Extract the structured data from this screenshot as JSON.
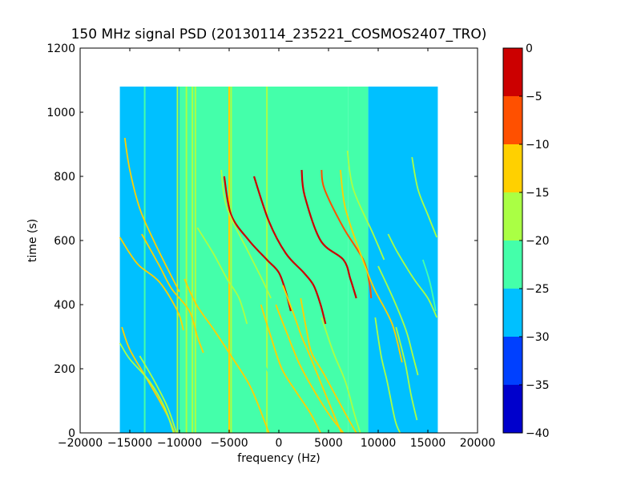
{
  "chart_data": {
    "type": "heatmap",
    "title": "150 MHz signal PSD (20130114_235221_COSMOS2407_TRO)",
    "xlabel": "frequency (Hz)",
    "ylabel": "time (s)",
    "xlim": [
      -20000,
      20000
    ],
    "ylim": [
      0,
      1200
    ],
    "xticks": [
      -20000,
      -15000,
      -10000,
      -5000,
      0,
      5000,
      10000,
      15000,
      20000
    ],
    "xtick_labels": [
      "−20000",
      "−15000",
      "−10000",
      "−5000",
      "0",
      "5000",
      "10000",
      "15000",
      "20000"
    ],
    "yticks": [
      0,
      200,
      400,
      600,
      800,
      1000,
      1200
    ],
    "ytick_labels": [
      "0",
      "200",
      "400",
      "600",
      "800",
      "1000",
      "1200"
    ],
    "data_extent": {
      "x": [
        -16000,
        16000
      ],
      "y": [
        0,
        1080
      ]
    },
    "colorbar": {
      "range": [
        -40,
        0
      ],
      "ticks": [
        0,
        -5,
        -10,
        -15,
        -20,
        -25,
        -30,
        -35,
        -40
      ],
      "tick_labels": [
        "0",
        "−5",
        "−10",
        "−15",
        "−20",
        "−25",
        "−30",
        "−35",
        "−40"
      ],
      "bins": [
        {
          "range": [
            -40,
            -35
          ],
          "color": "#0000cc"
        },
        {
          "range": [
            -35,
            -30
          ],
          "color": "#0040ff"
        },
        {
          "range": [
            -30,
            -25
          ],
          "color": "#00c0ff"
        },
        {
          "range": [
            -25,
            -20
          ],
          "color": "#44ffaa"
        },
        {
          "range": [
            -20,
            -15
          ],
          "color": "#aaff44"
        },
        {
          "range": [
            -15,
            -10
          ],
          "color": "#ffd000"
        },
        {
          "range": [
            -10,
            -5
          ],
          "color": "#ff5000"
        },
        {
          "range": [
            -5,
            0
          ],
          "color": "#cc0000"
        }
      ]
    },
    "regions": [
      {
        "x": [
          -16000,
          -10000
        ],
        "y": [
          0,
          1080
        ],
        "level": -27.5
      },
      {
        "x": [
          -10000,
          7000
        ],
        "y": [
          0,
          1080
        ],
        "level": -22.5
      },
      {
        "x": [
          7000,
          9000
        ],
        "y": [
          0,
          1080
        ],
        "level": -24
      },
      {
        "x": [
          9000,
          16000
        ],
        "y": [
          0,
          1080
        ],
        "level": -27.5
      }
    ],
    "vertical_lines": [
      {
        "x": -13500,
        "level": -22.5
      },
      {
        "x": -10200,
        "level": -17.5
      },
      {
        "x": -9300,
        "level": -17.5
      },
      {
        "x": -8700,
        "level": -17.5
      },
      {
        "x": -8400,
        "level": -17.5
      },
      {
        "x": -5000,
        "level": -12.5
      },
      {
        "x": -4800,
        "level": -17.5
      },
      {
        "x": -1200,
        "level": -17.5
      },
      {
        "x": 8800,
        "level": -22.5
      }
    ],
    "tracks": [
      {
        "level": -2.5,
        "points": [
          [
            -5500,
            800
          ],
          [
            -4800,
            680
          ],
          [
            -3000,
            600
          ],
          [
            -1200,
            540
          ],
          [
            0,
            500
          ],
          [
            700,
            440
          ],
          [
            1200,
            380
          ]
        ]
      },
      {
        "level": -2.5,
        "points": [
          [
            -2500,
            800
          ],
          [
            -1000,
            660
          ],
          [
            700,
            560
          ],
          [
            2500,
            500
          ],
          [
            3500,
            460
          ],
          [
            4200,
            400
          ],
          [
            4700,
            340
          ]
        ]
      },
      {
        "level": -2.5,
        "points": [
          [
            2300,
            820
          ],
          [
            2600,
            740
          ],
          [
            4200,
            600
          ],
          [
            6500,
            540
          ],
          [
            7200,
            480
          ],
          [
            7800,
            420
          ]
        ]
      },
      {
        "level": -7.5,
        "points": [
          [
            4300,
            820
          ],
          [
            4600,
            760
          ],
          [
            6500,
            640
          ],
          [
            8500,
            540
          ],
          [
            9100,
            470
          ],
          [
            9300,
            420
          ]
        ]
      },
      {
        "level": -12.5,
        "points": [
          [
            -1800,
            400
          ],
          [
            -800,
            300
          ],
          [
            300,
            200
          ],
          [
            1700,
            130
          ],
          [
            3200,
            60
          ],
          [
            4200,
            0
          ]
        ]
      },
      {
        "level": -12.5,
        "points": [
          [
            -300,
            400
          ],
          [
            700,
            320
          ],
          [
            2000,
            220
          ],
          [
            3200,
            150
          ],
          [
            5000,
            60
          ],
          [
            6500,
            0
          ]
        ]
      },
      {
        "level": -12.5,
        "points": [
          [
            400,
            460
          ],
          [
            1500,
            370
          ],
          [
            2300,
            300
          ],
          [
            3000,
            250
          ],
          [
            4700,
            120
          ],
          [
            6300,
            0
          ]
        ]
      },
      {
        "level": -12.5,
        "points": [
          [
            2200,
            420
          ],
          [
            2800,
            320
          ],
          [
            3300,
            250
          ],
          [
            4600,
            180
          ],
          [
            6700,
            60
          ],
          [
            7800,
            0
          ]
        ]
      },
      {
        "level": -12.5,
        "points": [
          [
            6200,
            820
          ],
          [
            6700,
            700
          ],
          [
            8200,
            560
          ],
          [
            9600,
            450
          ],
          [
            11400,
            340
          ],
          [
            12400,
            220
          ]
        ]
      },
      {
        "level": -12.5,
        "points": [
          [
            -13800,
            620
          ],
          [
            -12000,
            520
          ],
          [
            -10800,
            450
          ],
          [
            -9000,
            380
          ],
          [
            -8200,
            300
          ],
          [
            -7600,
            250
          ]
        ]
      },
      {
        "level": -12.5,
        "points": [
          [
            -16000,
            610
          ],
          [
            -15000,
            560
          ],
          [
            -14000,
            520
          ],
          [
            -12000,
            470
          ],
          [
            -10200,
            380
          ],
          [
            -9600,
            320
          ]
        ]
      },
      {
        "level": -12.5,
        "points": [
          [
            -15500,
            920
          ],
          [
            -15000,
            820
          ],
          [
            -14000,
            700
          ],
          [
            -12600,
            600
          ],
          [
            -11000,
            500
          ],
          [
            -10000,
            440
          ]
        ]
      },
      {
        "level": -12.5,
        "points": [
          [
            -15800,
            330
          ],
          [
            -15000,
            260
          ],
          [
            -13500,
            180
          ],
          [
            -12000,
            100
          ],
          [
            -11000,
            40
          ],
          [
            -10500,
            0
          ]
        ]
      },
      {
        "level": -12.5,
        "points": [
          [
            -9500,
            480
          ],
          [
            -8300,
            400
          ],
          [
            -6500,
            320
          ],
          [
            -4800,
            240
          ],
          [
            -2800,
            140
          ],
          [
            -1000,
            0
          ]
        ]
      },
      {
        "level": -17.5,
        "points": [
          [
            -5800,
            820
          ],
          [
            -5200,
            700
          ],
          [
            -3000,
            560
          ],
          [
            -1700,
            480
          ],
          [
            -800,
            420
          ]
        ]
      },
      {
        "level": -17.5,
        "points": [
          [
            -16000,
            280
          ],
          [
            -15000,
            230
          ],
          [
            -13000,
            160
          ],
          [
            -11500,
            80
          ],
          [
            -10600,
            0
          ]
        ]
      },
      {
        "level": -17.5,
        "points": [
          [
            -8200,
            640
          ],
          [
            -6600,
            560
          ],
          [
            -5200,
            480
          ],
          [
            -4000,
            420
          ],
          [
            -3200,
            340
          ]
        ]
      },
      {
        "level": -17.5,
        "points": [
          [
            -14000,
            240
          ],
          [
            -12500,
            160
          ],
          [
            -11200,
            80
          ],
          [
            -10300,
            0
          ]
        ]
      },
      {
        "level": -17.5,
        "points": [
          [
            6900,
            880
          ],
          [
            7500,
            760
          ],
          [
            9500,
            620
          ],
          [
            10600,
            540
          ]
        ]
      },
      {
        "level": -17.5,
        "points": [
          [
            10000,
            520
          ],
          [
            11500,
            420
          ],
          [
            12800,
            320
          ],
          [
            13500,
            240
          ],
          [
            14000,
            180
          ]
        ]
      },
      {
        "level": -17.5,
        "points": [
          [
            11000,
            620
          ],
          [
            12000,
            560
          ],
          [
            13600,
            480
          ],
          [
            15000,
            420
          ],
          [
            15900,
            360
          ]
        ]
      },
      {
        "level": -17.5,
        "points": [
          [
            13400,
            860
          ],
          [
            14000,
            760
          ],
          [
            15000,
            680
          ],
          [
            15900,
            610
          ]
        ]
      },
      {
        "level": -17.5,
        "points": [
          [
            9700,
            360
          ],
          [
            10300,
            240
          ],
          [
            10900,
            160
          ],
          [
            11700,
            40
          ],
          [
            12200,
            0
          ]
        ]
      },
      {
        "level": -17.5,
        "points": [
          [
            4300,
            360
          ],
          [
            5500,
            250
          ],
          [
            6700,
            160
          ],
          [
            7600,
            60
          ],
          [
            8200,
            0
          ]
        ]
      },
      {
        "level": -17.5,
        "points": [
          [
            11800,
            330
          ],
          [
            12700,
            220
          ],
          [
            13300,
            120
          ],
          [
            13900,
            40
          ]
        ]
      },
      {
        "level": -22.5,
        "points": [
          [
            14500,
            540
          ],
          [
            15200,
            470
          ],
          [
            15800,
            380
          ]
        ]
      },
      {
        "level": -22.5,
        "points": [
          [
            -3500,
            320
          ],
          [
            -2000,
            240
          ],
          [
            -500,
            160
          ],
          [
            800,
            80
          ],
          [
            1800,
            0
          ]
        ]
      }
    ]
  }
}
